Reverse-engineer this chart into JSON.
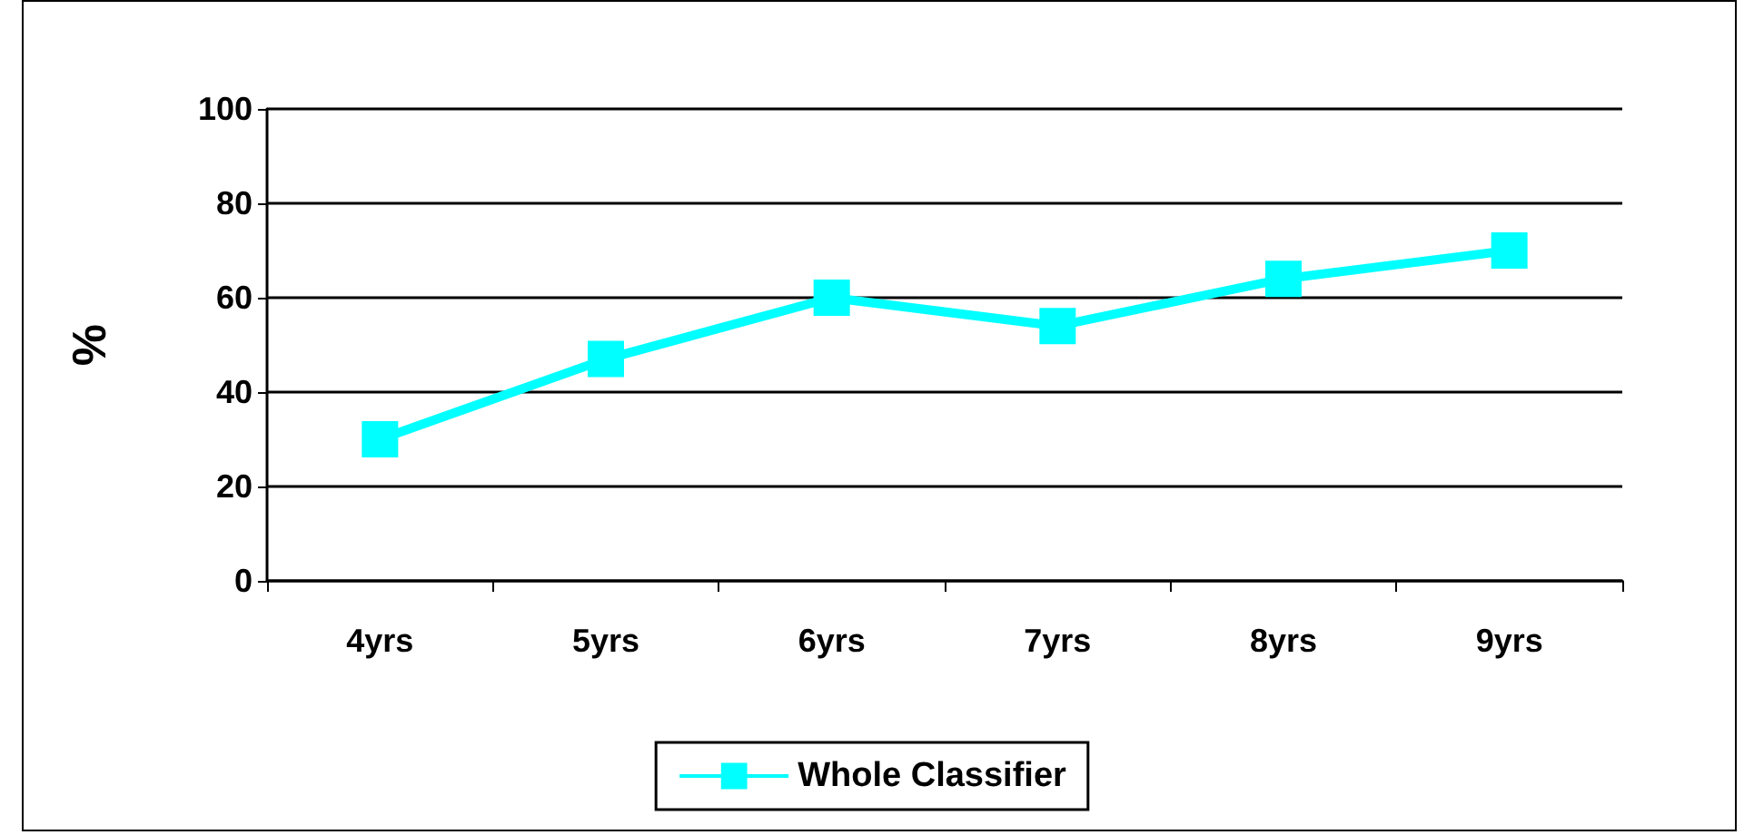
{
  "chart_data": {
    "type": "line",
    "ylabel": "%",
    "categories": [
      "4yrs",
      "5yrs",
      "6yrs",
      "7yrs",
      "8yrs",
      "9yrs"
    ],
    "series": [
      {
        "name": "Whole Classifier",
        "color": "#00ffff",
        "values": [
          30,
          47,
          60,
          54,
          64,
          70
        ]
      }
    ],
    "ylim": [
      0,
      100
    ],
    "yticks": [
      0,
      20,
      40,
      60,
      80,
      100
    ],
    "grid": "y",
    "legend": "bottom",
    "marker": "square",
    "line_style": "solid"
  }
}
